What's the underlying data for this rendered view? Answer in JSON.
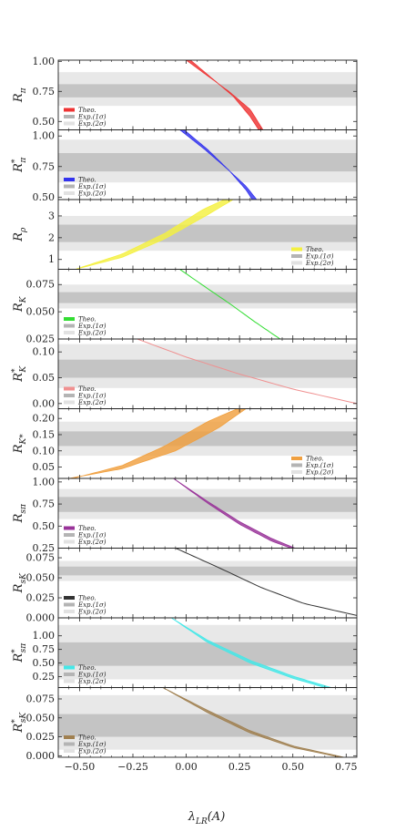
{
  "figure": {
    "xlabel": "λ",
    "xlabel_sub": "LR",
    "xlabel_tail": "(A)",
    "x_ticks": [
      "−0.50",
      "−0.25",
      "0.00",
      "0.25",
      "0.50",
      "0.75"
    ],
    "legend_labels": [
      "Theo.",
      "Exp.(1σ)",
      "Exp.(2σ)"
    ]
  },
  "chart_data": [
    {
      "type": "area",
      "ylabel": "R",
      "ylabel_sub": "π",
      "ylabel_sup": "",
      "xlim": [
        -0.6,
        0.8
      ],
      "ylim": [
        0.43,
        1.01
      ],
      "ytick_values": [
        0.5,
        0.75,
        1.0
      ],
      "y_ticks": [
        "0.50",
        "0.75",
        "1.00"
      ],
      "band_2sigma": [
        0.63,
        0.91
      ],
      "band_1sigma": [
        0.7,
        0.81
      ],
      "color": "#ee3333",
      "legend_position": "bottom-left",
      "series": [
        {
          "name": "Theo.",
          "x_lower": [
            0.0,
            0.1,
            0.2,
            0.3,
            0.36
          ],
          "y_lower": [
            1.01,
            0.88,
            0.75,
            0.6,
            0.43
          ],
          "x_upper": [
            0.02,
            0.12,
            0.22,
            0.3,
            0.34
          ],
          "y_upper": [
            1.01,
            0.86,
            0.71,
            0.54,
            0.43
          ]
        }
      ]
    },
    {
      "type": "area",
      "ylabel": "R",
      "ylabel_sub": "π",
      "ylabel_sup": "*",
      "xlim": [
        -0.6,
        0.8
      ],
      "ylim": [
        0.48,
        1.05
      ],
      "ytick_values": [
        0.5,
        0.75,
        1.0
      ],
      "y_ticks": [
        "0.50",
        "0.75",
        "1.00"
      ],
      "band_2sigma": [
        0.62,
        0.97
      ],
      "band_1sigma": [
        0.71,
        0.86
      ],
      "color": "#3333ee",
      "legend_position": "bottom-left",
      "series": [
        {
          "name": "Theo.",
          "x_lower": [
            -0.03,
            0.08,
            0.18,
            0.28,
            0.33
          ],
          "y_lower": [
            1.05,
            0.9,
            0.75,
            0.59,
            0.48
          ],
          "x_upper": [
            -0.01,
            0.1,
            0.2,
            0.28,
            0.31
          ],
          "y_upper": [
            1.05,
            0.89,
            0.72,
            0.56,
            0.48
          ]
        }
      ]
    },
    {
      "type": "area",
      "ylabel": "R",
      "ylabel_sub": "ρ",
      "ylabel_sup": "",
      "xlim": [
        -0.6,
        0.8
      ],
      "ylim": [
        0.55,
        3.75
      ],
      "ytick_values": [
        1,
        2,
        3
      ],
      "y_ticks": [
        "1",
        "2",
        "3"
      ],
      "band_2sigma": [
        1.4,
        3.0
      ],
      "band_1sigma": [
        1.8,
        2.6
      ],
      "color": "#f4f040",
      "legend_position": "bottom-right",
      "series": [
        {
          "name": "Theo.",
          "x_lower": [
            -0.52,
            -0.3,
            -0.1,
            0.1,
            0.22
          ],
          "y_lower": [
            0.55,
            1.1,
            1.95,
            3.05,
            3.75
          ],
          "x_upper": [
            -0.52,
            -0.3,
            -0.1,
            0.08,
            0.18
          ],
          "y_upper": [
            0.55,
            1.25,
            2.2,
            3.3,
            3.75
          ]
        }
      ]
    },
    {
      "type": "line",
      "ylabel": "R",
      "ylabel_sub": "K",
      "ylabel_sup": "",
      "xlim": [
        -0.6,
        0.8
      ],
      "ylim": [
        0.025,
        0.089
      ],
      "ytick_values": [
        0.025,
        0.05,
        0.075
      ],
      "y_ticks": [
        "0.025",
        "0.050",
        "0.075"
      ],
      "band_2sigma": [
        0.053,
        0.075
      ],
      "band_1sigma": [
        0.058,
        0.068
      ],
      "color": "#33dd33",
      "legend_position": "bottom-left",
      "series": [
        {
          "name": "Theo.",
          "x": [
            -0.03,
            0.08,
            0.2,
            0.32,
            0.44
          ],
          "y": [
            0.089,
            0.074,
            0.058,
            0.041,
            0.025
          ]
        }
      ]
    },
    {
      "type": "line",
      "ylabel": "R",
      "ylabel_sub": "K",
      "ylabel_sup": "*",
      "xlim": [
        -0.6,
        0.8
      ],
      "ylim": [
        -0.01,
        0.125
      ],
      "ytick_values": [
        0.0,
        0.05,
        0.1
      ],
      "y_ticks": [
        "0.00",
        "0.05",
        "0.10"
      ],
      "band_2sigma": [
        0.03,
        0.115
      ],
      "band_1sigma": [
        0.05,
        0.085
      ],
      "color": "#f09090",
      "legend_position": "bottom-left",
      "series": [
        {
          "name": "Theo.",
          "x": [
            -0.23,
            0.0,
            0.25,
            0.5,
            0.8
          ],
          "y": [
            0.125,
            0.09,
            0.057,
            0.028,
            0.0
          ]
        }
      ]
    },
    {
      "type": "area",
      "ylabel": "R",
      "ylabel_sub": "K*",
      "ylabel_sup": "",
      "xlim": [
        -0.6,
        0.8
      ],
      "ylim": [
        0.015,
        0.23
      ],
      "ytick_values": [
        0.05,
        0.1,
        0.15,
        0.2
      ],
      "y_ticks": [
        "0.05",
        "0.10",
        "0.15",
        "0.20"
      ],
      "band_2sigma": [
        0.085,
        0.19
      ],
      "band_1sigma": [
        0.115,
        0.16
      ],
      "color": "#f0a040",
      "legend_position": "bottom-right",
      "series": [
        {
          "name": "Theo.",
          "x_lower": [
            -0.55,
            -0.3,
            -0.05,
            0.15,
            0.28
          ],
          "y_lower": [
            0.015,
            0.045,
            0.1,
            0.17,
            0.23
          ],
          "x_upper": [
            -0.53,
            -0.3,
            -0.1,
            0.1,
            0.24
          ],
          "y_upper": [
            0.015,
            0.055,
            0.115,
            0.19,
            0.23
          ]
        }
      ]
    },
    {
      "type": "area",
      "ylabel": "R",
      "ylabel_sub": "sπ",
      "ylabel_sup": "",
      "xlim": [
        -0.6,
        0.8
      ],
      "ylim": [
        0.25,
        1.04
      ],
      "ytick_values": [
        0.25,
        0.5,
        0.75,
        1.0
      ],
      "y_ticks": [
        "0.25",
        "0.50",
        "0.75",
        "1.00"
      ],
      "band_2sigma": [
        0.58,
        0.92
      ],
      "band_1sigma": [
        0.66,
        0.83
      ],
      "color": "#993399",
      "legend_position": "bottom-left",
      "series": [
        {
          "name": "Theo.",
          "x_lower": [
            -0.06,
            0.1,
            0.25,
            0.4,
            0.51
          ],
          "y_lower": [
            1.04,
            0.78,
            0.55,
            0.36,
            0.25
          ],
          "x_upper": [
            -0.06,
            0.1,
            0.25,
            0.4,
            0.49
          ],
          "y_upper": [
            1.04,
            0.76,
            0.52,
            0.33,
            0.25
          ]
        }
      ]
    },
    {
      "type": "line",
      "ylabel": "R",
      "ylabel_sub": "sK",
      "ylabel_sup": "",
      "xlim": [
        -0.6,
        0.8
      ],
      "ylim": [
        0.0,
        0.087
      ],
      "ytick_values": [
        0.0,
        0.025,
        0.05,
        0.075
      ],
      "y_ticks": [
        "0.000",
        "0.025",
        "0.050",
        "0.075"
      ],
      "band_2sigma": [
        0.046,
        0.071
      ],
      "band_1sigma": [
        0.053,
        0.064
      ],
      "color": "#333333",
      "legend_position": "bottom-left",
      "series": [
        {
          "name": "Theo.",
          "x": [
            -0.05,
            0.15,
            0.35,
            0.55,
            0.8
          ],
          "y": [
            0.087,
            0.063,
            0.038,
            0.018,
            0.003
          ]
        }
      ]
    },
    {
      "type": "area",
      "ylabel": "R",
      "ylabel_sub": "sπ",
      "ylabel_sup": "*",
      "xlim": [
        -0.6,
        0.8
      ],
      "ylim": [
        0.05,
        1.33
      ],
      "ytick_values": [
        0.25,
        0.5,
        0.75,
        1.0
      ],
      "y_ticks": [
        "0.25",
        "0.50",
        "0.75",
        "1.00"
      ],
      "band_2sigma": [
        0.2,
        1.2
      ],
      "band_1sigma": [
        0.45,
        0.88
      ],
      "color": "#44e8e8",
      "legend_position": "bottom-left",
      "series": [
        {
          "name": "Theo.",
          "x_lower": [
            -0.07,
            0.1,
            0.3,
            0.5,
            0.68
          ],
          "y_lower": [
            1.33,
            0.92,
            0.55,
            0.26,
            0.05
          ],
          "x_upper": [
            -0.07,
            0.1,
            0.3,
            0.5,
            0.65
          ],
          "y_upper": [
            1.33,
            0.88,
            0.5,
            0.22,
            0.05
          ]
        }
      ]
    },
    {
      "type": "area",
      "ylabel": "R",
      "ylabel_sub": "sK",
      "ylabel_sup": "*",
      "xlim": [
        -0.6,
        0.8
      ],
      "ylim": [
        -0.002,
        0.09
      ],
      "ytick_values": [
        0.0,
        0.025,
        0.05,
        0.075
      ],
      "y_ticks": [
        "0.000",
        "0.025",
        "0.050",
        "0.075"
      ],
      "band_2sigma": [
        0.008,
        0.08
      ],
      "band_1sigma": [
        0.025,
        0.055
      ],
      "color": "#a08050",
      "legend_position": "bottom-left",
      "series": [
        {
          "name": "Theo.",
          "x_lower": [
            -0.11,
            0.1,
            0.3,
            0.5,
            0.74
          ],
          "y_lower": [
            0.09,
            0.06,
            0.033,
            0.013,
            -0.002
          ],
          "x_upper": [
            -0.11,
            0.1,
            0.3,
            0.5,
            0.72
          ],
          "y_upper": [
            0.09,
            0.057,
            0.03,
            0.011,
            -0.002
          ]
        }
      ]
    }
  ]
}
